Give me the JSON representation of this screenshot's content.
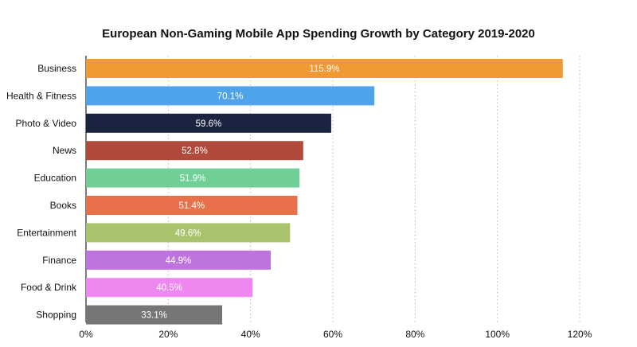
{
  "chart_data": {
    "type": "bar",
    "orientation": "horizontal",
    "title": "European Non-Gaming Mobile App Spending Growth by Category 2019-2020",
    "xlabel": "",
    "ylabel": "",
    "xlim": [
      0,
      120
    ],
    "grid": "vertical dotted",
    "legend": "none",
    "x_ticks": [
      "0%",
      "20%",
      "40%",
      "60%",
      "80%",
      "100%",
      "120%"
    ],
    "x_tick_values": [
      0,
      20,
      40,
      60,
      80,
      100,
      120
    ],
    "categories": [
      "Business",
      "Health & Fitness",
      "Photo & Video",
      "News",
      "Education",
      "Books",
      "Entertainment",
      "Finance",
      "Food & Drink",
      "Shopping"
    ],
    "values": [
      115.9,
      70.1,
      59.6,
      52.8,
      51.9,
      51.4,
      49.6,
      44.9,
      40.5,
      33.1
    ],
    "data_labels": [
      "115.9%",
      "70.1%",
      "59.6%",
      "52.8%",
      "51.9%",
      "51.4%",
      "49.6%",
      "44.9%",
      "40.5%",
      "33.1%"
    ],
    "colors": [
      "#ef9a33",
      "#4ea3ea",
      "#1a2440",
      "#b24a3c",
      "#6fcf97",
      "#e8714c",
      "#aac46d",
      "#be74df",
      "#ee88f0",
      "#767676"
    ]
  }
}
